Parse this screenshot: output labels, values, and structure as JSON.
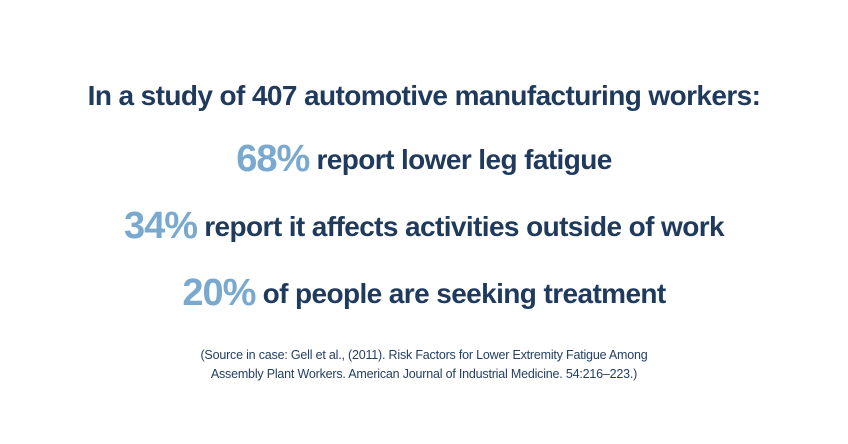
{
  "headline": "In a study of 407 automotive manufacturing workers:",
  "stats": [
    {
      "percent": "68%",
      "text": "report lower leg fatigue"
    },
    {
      "percent": "34%",
      "text": "report it affects activities outside of work"
    },
    {
      "percent": "20%",
      "text": "of people are seeking treatment"
    }
  ],
  "source": {
    "line1": "(Source in case: Gell et al., (2011). Risk Factors for Lower Extremity Fatigue Among",
    "line2": "Assembly Plant Workers. American Journal of Industrial Medicine. 54:216–223.)"
  },
  "colors": {
    "heading_text": "#1f3a5c",
    "percent_accent": "#7aa9cf",
    "background": "#ffffff"
  }
}
